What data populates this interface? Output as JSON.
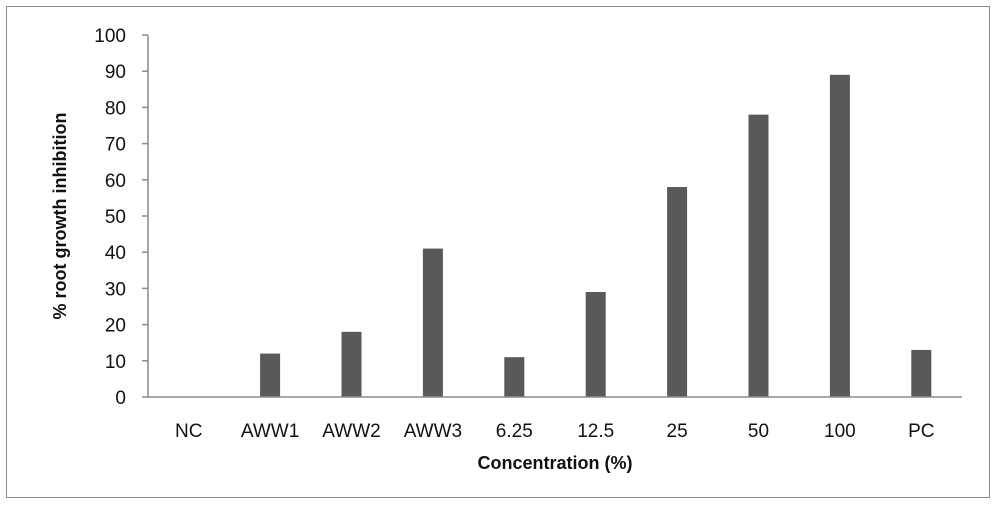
{
  "chart_data": {
    "type": "bar",
    "title": "",
    "xlabel": "Concentration (%)",
    "ylabel": "% root growth inhibition",
    "categories": [
      "NC",
      "AWW1",
      "AWW2",
      "AWW3",
      "6.25",
      "12.5",
      "25",
      "50",
      "100",
      "PC"
    ],
    "values": [
      0,
      12,
      18,
      41,
      11,
      29,
      58,
      78,
      89,
      13
    ],
    "ylim": [
      0,
      100
    ],
    "yticks": [
      "0",
      "10",
      "20",
      "30",
      "40",
      "50",
      "60",
      "70",
      "80",
      "90",
      "100"
    ],
    "grid": false,
    "legend": "none",
    "colors": {
      "bar": "#595959",
      "axis": "#8c8c8c",
      "border": "#8c8c8c"
    }
  }
}
